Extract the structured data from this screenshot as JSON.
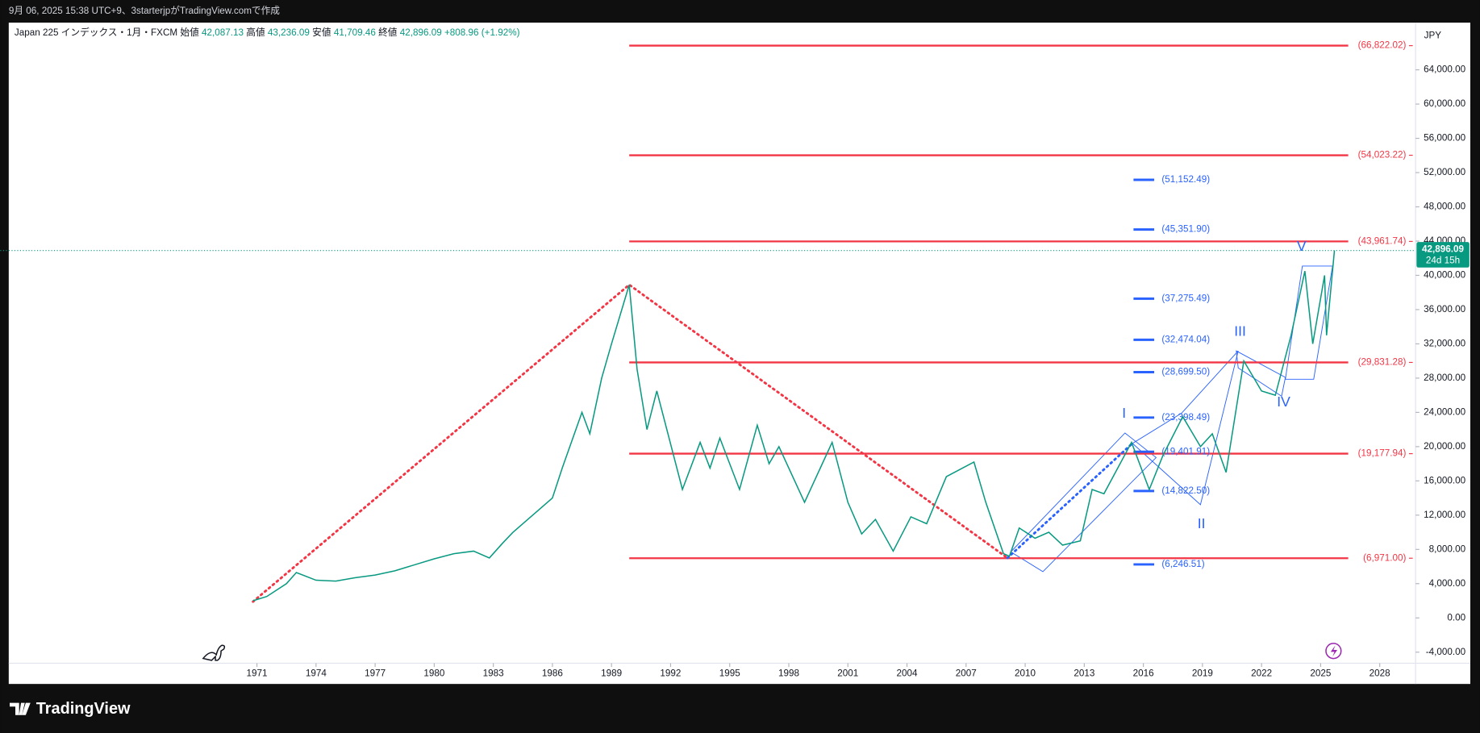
{
  "header": "9月 06, 2025 15:38 UTC+9、3starterjpがTradingView.comで作成",
  "brand": "TradingView",
  "chart_data": {
    "type": "line",
    "title": "Japan 225 インデックス・1月・FXCM",
    "ohlc": [
      {
        "name": "始値",
        "label": "42,087.13",
        "value": 42087.13
      },
      {
        "name": "高値",
        "label": "43,236.09",
        "value": 43236.09
      },
      {
        "name": "安値",
        "label": "41,709.46",
        "value": 41709.46
      },
      {
        "name": "終値",
        "label": "42,896.09",
        "value": 42896.09
      }
    ],
    "change": "+808.96 (+1.92%)",
    "currency": "JPY",
    "last_price": {
      "value": 42896.09,
      "label": "42,896.09",
      "countdown": "24d 15h",
      "color": "#089981"
    },
    "xlim": [
      1958.4,
      2029.82
    ],
    "ylim": [
      -5287,
      69508
    ],
    "grid": false,
    "xticks": [
      1971,
      1974,
      1977,
      1980,
      1983,
      1986,
      1989,
      1992,
      1995,
      1998,
      2001,
      2004,
      2007,
      2010,
      2013,
      2016,
      2019,
      2022,
      2025,
      2028
    ],
    "yticks": [
      {
        "value": -4000,
        "label": "-4,000.00"
      },
      {
        "value": 0,
        "label": "0.00"
      },
      {
        "value": 4000,
        "label": "4,000.00"
      },
      {
        "value": 8000,
        "label": "8,000.00"
      },
      {
        "value": 12000,
        "label": "12,000.00"
      },
      {
        "value": 16000,
        "label": "16,000.00"
      },
      {
        "value": 20000,
        "label": "20,000.00"
      },
      {
        "value": 24000,
        "label": "24,000.00"
      },
      {
        "value": 28000,
        "label": "28,000.00"
      },
      {
        "value": 32000,
        "label": "32,000.00"
      },
      {
        "value": 36000,
        "label": "36,000.00"
      },
      {
        "value": 40000,
        "label": "40,000.00"
      },
      {
        "value": 44000,
        "label": "44,000.00"
      },
      {
        "value": 48000,
        "label": "48,000.00"
      },
      {
        "value": 52000,
        "label": "52,000.00"
      },
      {
        "value": 56000,
        "label": "56,000.00"
      },
      {
        "value": 60000,
        "label": "60,000.00"
      },
      {
        "value": 64000,
        "label": "64,000.00"
      }
    ],
    "series": [
      {
        "name": "Japan 225",
        "color": "#089981",
        "x": [
          1970.8,
          1971.5,
          1972.5,
          1973.0,
          1974.0,
          1975,
          1976,
          1977,
          1978,
          1979,
          1980,
          1981,
          1982,
          1982.8,
          1983.5,
          1984,
          1985,
          1986,
          1986.5,
          1987.5,
          1987.9,
          1988.5,
          1989,
          1989.9,
          1990.3,
          1990.8,
          1991.3,
          1992.6,
          1993.5,
          1994,
          1994.5,
          1995.5,
          1996.4,
          1997,
          1997.5,
          1998.8,
          2000.2,
          2001,
          2001.7,
          2002.4,
          2003.3,
          2004.2,
          2005,
          2006,
          2007.4,
          2008,
          2008.9,
          2009.2,
          2009.7,
          2010.5,
          2011.2,
          2011.9,
          2012.8,
          2013.4,
          2014,
          2015.4,
          2016.3,
          2017,
          2018,
          2018.9,
          2019.5,
          2020.2,
          2021.1,
          2022,
          2022.7,
          2023.5,
          2024.2,
          2024.6,
          2025.2,
          2025.3,
          2025.7
        ],
        "values": [
          2000,
          2500,
          4000,
          5300,
          4400,
          4300,
          4700,
          5000,
          5500,
          6200,
          6900,
          7500,
          7800,
          7000,
          8800,
          10000,
          12000,
          14000,
          17500,
          24000,
          21500,
          28000,
          32000,
          38900,
          29000,
          22000,
          26500,
          15000,
          20500,
          17500,
          21000,
          15000,
          22500,
          18000,
          20000,
          13500,
          20500,
          13500,
          9800,
          11500,
          7800,
          11800,
          11000,
          16500,
          18200,
          13500,
          7500,
          7200,
          10500,
          9300,
          10000,
          8500,
          9000,
          15000,
          14500,
          20500,
          15000,
          19000,
          23500,
          20000,
          21500,
          17000,
          30000,
          26500,
          26000,
          33000,
          40500,
          32000,
          40000,
          33000,
          42896.09
        ]
      }
    ],
    "levels": {
      "color": "#f23645",
      "x": [
        1989.9,
        2026.4
      ],
      "items": [
        {
          "value": 66822.02,
          "label": "(66,822.02)"
        },
        {
          "value": 54023.22,
          "label": "(54,023.22)"
        },
        {
          "value": 43961.74,
          "label": "(43,961.74)"
        },
        {
          "value": 29831.28,
          "label": "(29,831.28)"
        },
        {
          "value": 19177.94,
          "label": "(19,177.94)"
        },
        {
          "value": 6971.0,
          "label": "(6,971.00)"
        }
      ]
    },
    "fib": {
      "color": "#2962ff",
      "x": [
        2015.5,
        2016.55
      ],
      "items": [
        {
          "value": 51152.49,
          "label": "(51,152.49)"
        },
        {
          "value": 45351.9,
          "label": "(45,351.90)"
        },
        {
          "value": 37275.49,
          "label": "(37,275.49)"
        },
        {
          "value": 32474.04,
          "label": "(32,474.04)"
        },
        {
          "value": 28699.5,
          "label": "(28,699.50)"
        },
        {
          "value": 23398.49,
          "label": "(23,398.49)"
        },
        {
          "value": 19401.91,
          "label": "(19,401.91)"
        },
        {
          "value": 14822.5,
          "label": "(14,822.50)"
        },
        {
          "value": 6246.51,
          "label": "(6,246.51)"
        }
      ]
    },
    "trend_lines": [
      {
        "color": "#f23645",
        "x": [
          1970.8,
          1989.9,
          2009.1
        ],
        "y": [
          1900,
          38900,
          7000
        ]
      },
      {
        "color": "#2962ff",
        "x": [
          2009.1,
          2015.5
        ],
        "y": [
          7000,
          20500
        ]
      }
    ],
    "annotations": [
      {
        "text": "I",
        "x": 2015.02,
        "y": 23794
      },
      {
        "text": "II",
        "x": 2018.95,
        "y": 10905
      },
      {
        "text": "III",
        "x": 2020.91,
        "y": 33377
      },
      {
        "text": "IV",
        "x": 2023.12,
        "y": 25115
      },
      {
        "text": "V",
        "x": 2024.03,
        "y": 43291
      }
    ]
  }
}
